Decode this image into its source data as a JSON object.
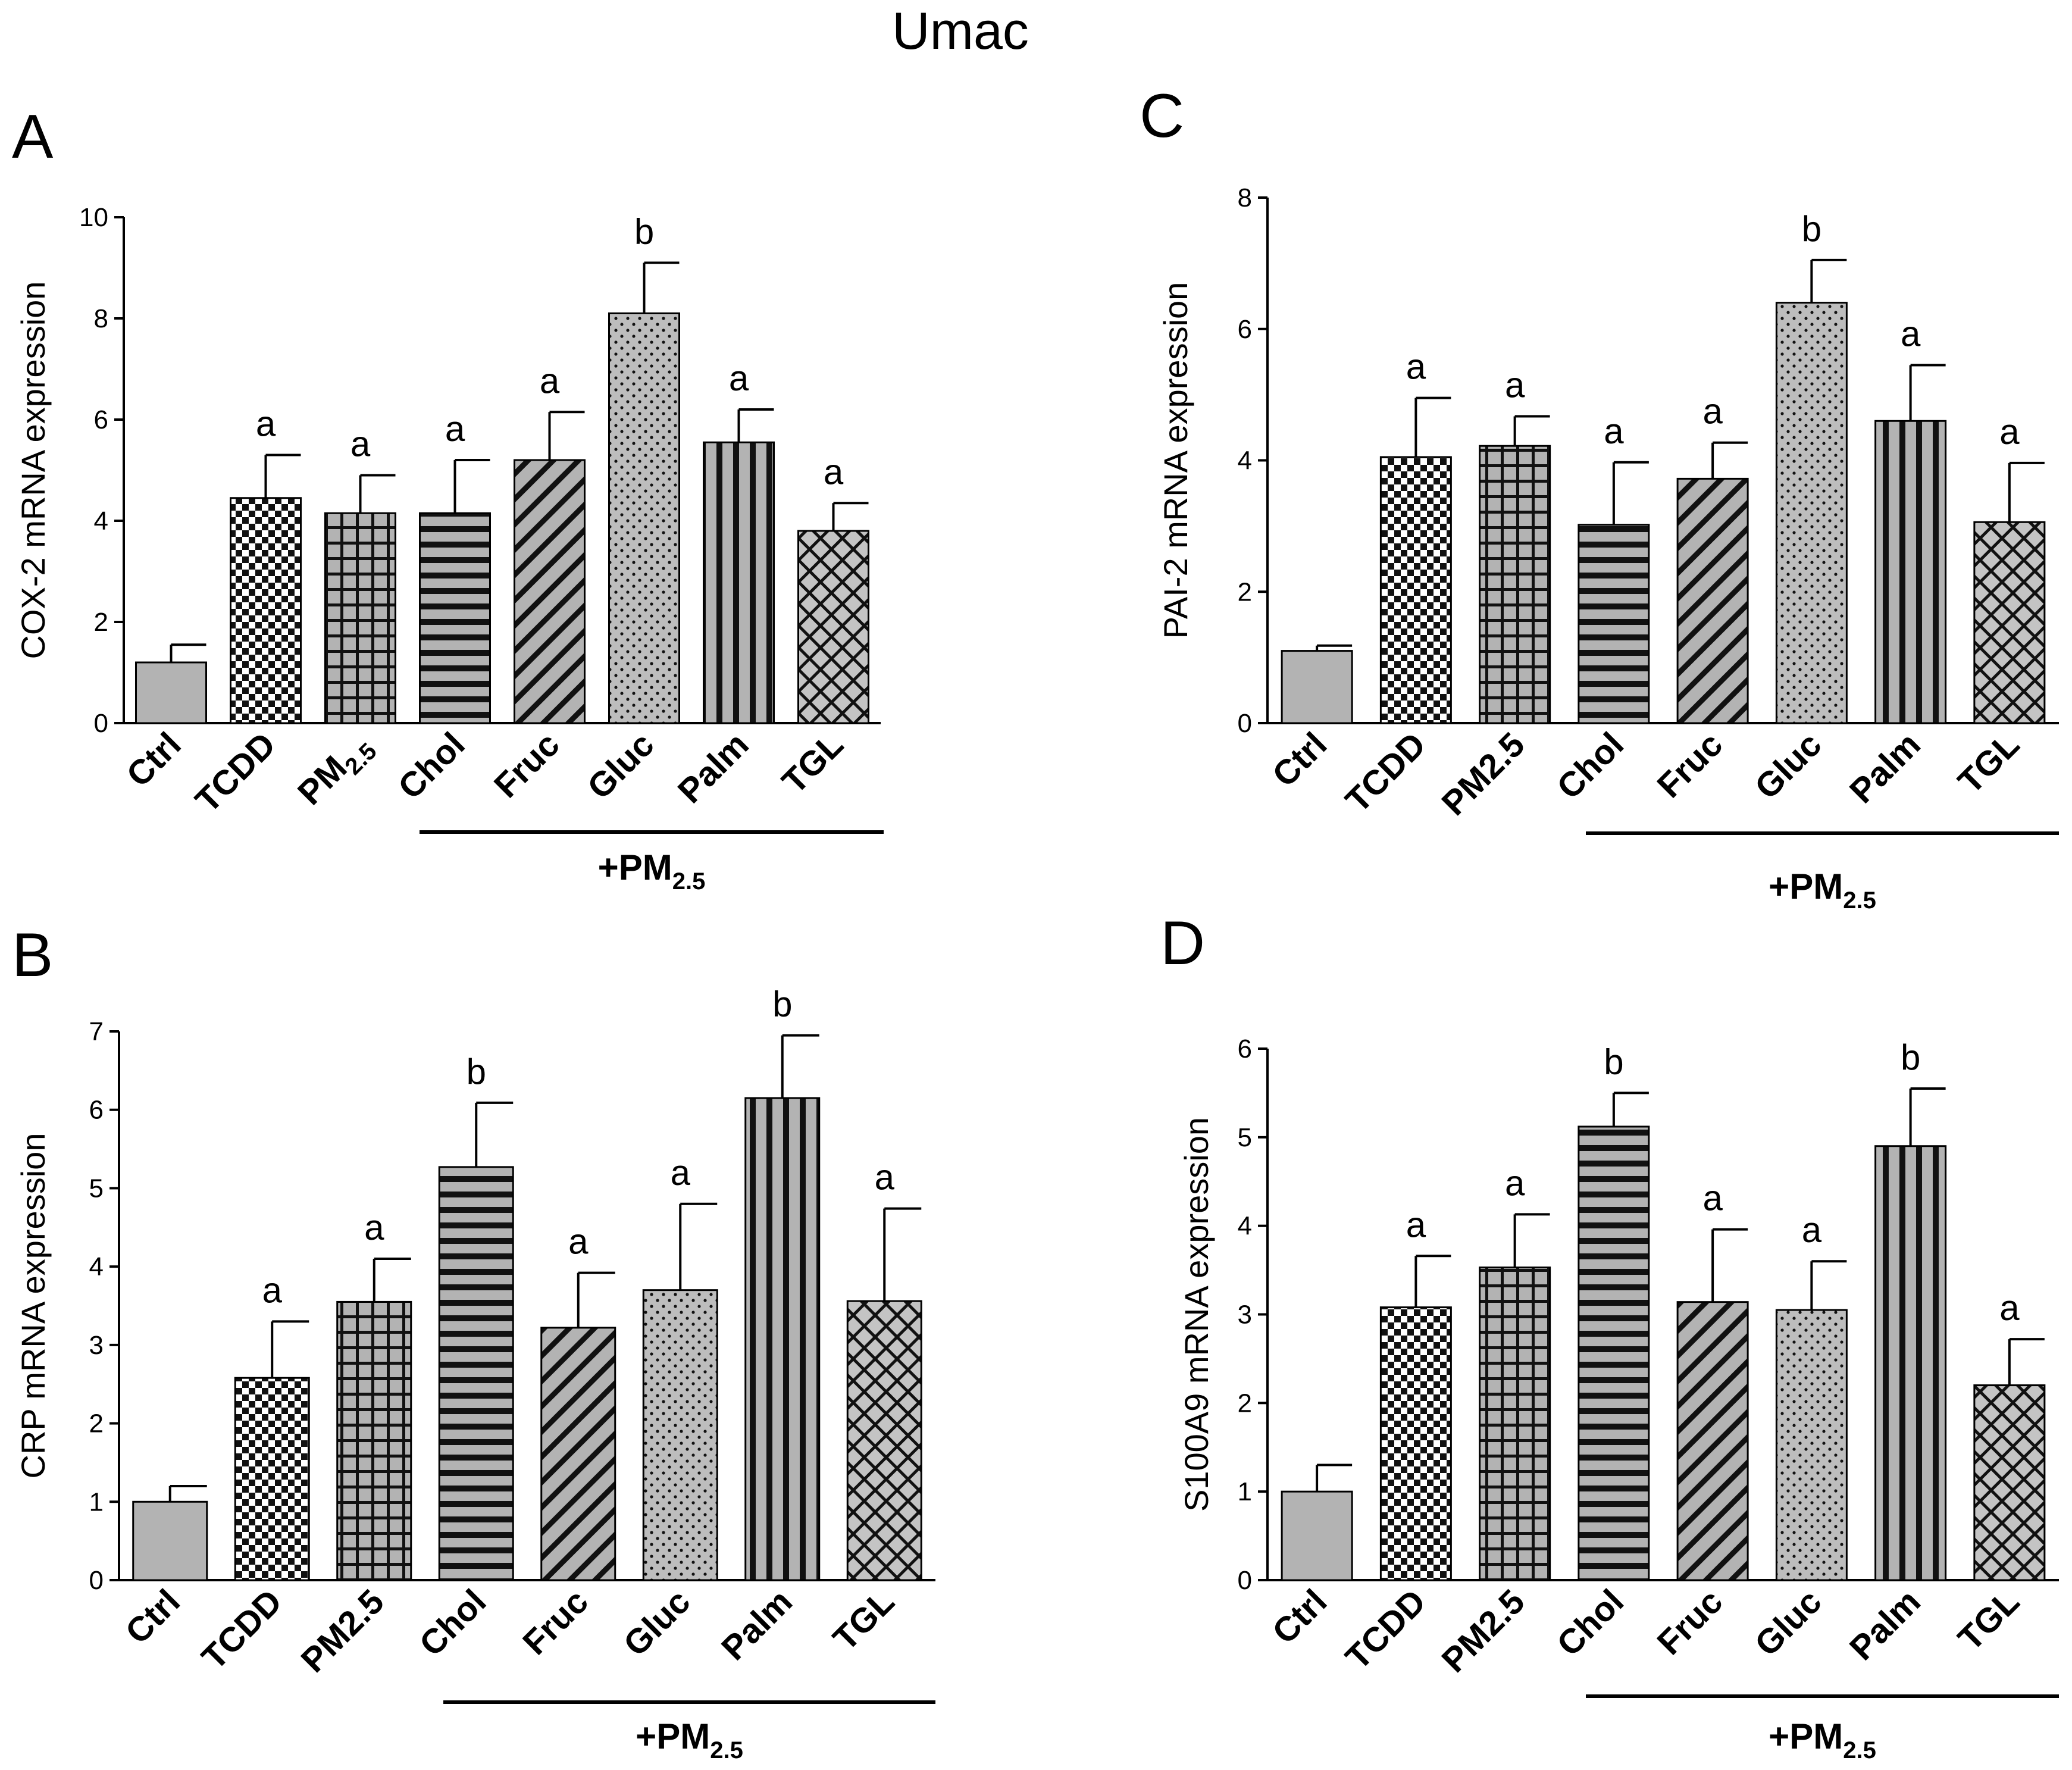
{
  "figure_title": "Umac",
  "chart_data": [
    {
      "panel": "A",
      "type": "bar",
      "ylabel": "COX-2 mRNA expression",
      "ylim": [
        0,
        10
      ],
      "yticks": [
        0,
        2,
        4,
        6,
        8,
        10
      ],
      "categories": [
        {
          "main": "Ctrl",
          "sub": ""
        },
        {
          "main": "TCDD",
          "sub": ""
        },
        {
          "main": "PM",
          "sub": "2.5"
        },
        {
          "main": "Chol",
          "sub": ""
        },
        {
          "main": "Fruc",
          "sub": ""
        },
        {
          "main": "Gluc",
          "sub": ""
        },
        {
          "main": "Palm",
          "sub": ""
        },
        {
          "main": "TGL",
          "sub": ""
        }
      ],
      "values": [
        1.2,
        4.45,
        4.15,
        4.15,
        5.2,
        8.1,
        5.55,
        3.8
      ],
      "errors": [
        0.35,
        0.85,
        0.75,
        1.05,
        0.95,
        1.0,
        0.65,
        0.55
      ],
      "significance": [
        "",
        "a",
        "a",
        "a",
        "a",
        "b",
        "a",
        "a"
      ],
      "patterns": [
        "solid",
        "checker",
        "grid",
        "hstripe",
        "diag",
        "dots",
        "vstripe",
        "weave"
      ],
      "group_label": {
        "main": "+PM",
        "sub": "2.5"
      }
    },
    {
      "panel": "B",
      "type": "bar",
      "ylabel": "CRP mRNA expression",
      "ylim": [
        0,
        7
      ],
      "yticks": [
        0,
        1,
        2,
        3,
        4,
        5,
        6,
        7
      ],
      "categories": [
        {
          "main": "Ctrl",
          "sub": ""
        },
        {
          "main": "TCDD",
          "sub": ""
        },
        {
          "main": "PM2.5",
          "sub": ""
        },
        {
          "main": "Chol",
          "sub": ""
        },
        {
          "main": "Fruc",
          "sub": ""
        },
        {
          "main": "Gluc",
          "sub": ""
        },
        {
          "main": "Palm",
          "sub": ""
        },
        {
          "main": "TGL",
          "sub": ""
        }
      ],
      "values": [
        1.0,
        2.58,
        3.55,
        5.27,
        3.22,
        3.7,
        6.15,
        3.56
      ],
      "errors": [
        0.2,
        0.72,
        0.55,
        0.82,
        0.7,
        1.1,
        0.8,
        1.18
      ],
      "significance": [
        "",
        "a",
        "a",
        "b",
        "a",
        "a",
        "b",
        "a"
      ],
      "patterns": [
        "solid",
        "checker",
        "grid",
        "hstripe",
        "diag",
        "dots",
        "vstripe",
        "weave"
      ],
      "group_label": {
        "main": "+PM",
        "sub": "2.5"
      }
    },
    {
      "panel": "C",
      "type": "bar",
      "ylabel": "PAI-2 mRNA expression",
      "ylim": [
        0,
        8
      ],
      "yticks": [
        0,
        2,
        4,
        6,
        8
      ],
      "categories": [
        {
          "main": "Ctrl",
          "sub": ""
        },
        {
          "main": "TCDD",
          "sub": ""
        },
        {
          "main": "PM2.5",
          "sub": ""
        },
        {
          "main": "Chol",
          "sub": ""
        },
        {
          "main": "Fruc",
          "sub": ""
        },
        {
          "main": "Gluc",
          "sub": ""
        },
        {
          "main": "Palm",
          "sub": ""
        },
        {
          "main": "TGL",
          "sub": ""
        }
      ],
      "values": [
        1.1,
        4.05,
        4.22,
        3.02,
        3.72,
        6.4,
        4.6,
        3.06
      ],
      "errors": [
        0.08,
        0.9,
        0.45,
        0.95,
        0.55,
        0.65,
        0.85,
        0.9
      ],
      "significance": [
        "",
        "a",
        "a",
        "a",
        "a",
        "b",
        "a",
        "a"
      ],
      "patterns": [
        "solid",
        "checker",
        "grid",
        "hstripe",
        "diag",
        "dots",
        "vstripe",
        "weave"
      ],
      "group_label": {
        "main": "+PM",
        "sub": "2.5"
      }
    },
    {
      "panel": "D",
      "type": "bar",
      "ylabel": "S100A9 mRNA expression",
      "ylim": [
        0,
        6
      ],
      "yticks": [
        0,
        1,
        2,
        3,
        4,
        5,
        6
      ],
      "categories": [
        {
          "main": "Ctrl",
          "sub": ""
        },
        {
          "main": "TCDD",
          "sub": ""
        },
        {
          "main": "PM2.5",
          "sub": ""
        },
        {
          "main": "Chol",
          "sub": ""
        },
        {
          "main": "Fruc",
          "sub": ""
        },
        {
          "main": "Gluc",
          "sub": ""
        },
        {
          "main": "Palm",
          "sub": ""
        },
        {
          "main": "TGL",
          "sub": ""
        }
      ],
      "values": [
        1.0,
        3.08,
        3.53,
        5.12,
        3.14,
        3.05,
        4.9,
        2.2
      ],
      "errors": [
        0.3,
        0.58,
        0.6,
        0.38,
        0.82,
        0.55,
        0.65,
        0.52
      ],
      "significance": [
        "",
        "a",
        "a",
        "b",
        "a",
        "a",
        "b",
        "a"
      ],
      "patterns": [
        "solid",
        "checker",
        "grid",
        "hstripe",
        "diag",
        "dots",
        "vstripe",
        "weave"
      ],
      "group_label": {
        "main": "+PM",
        "sub": "2.5"
      }
    }
  ]
}
